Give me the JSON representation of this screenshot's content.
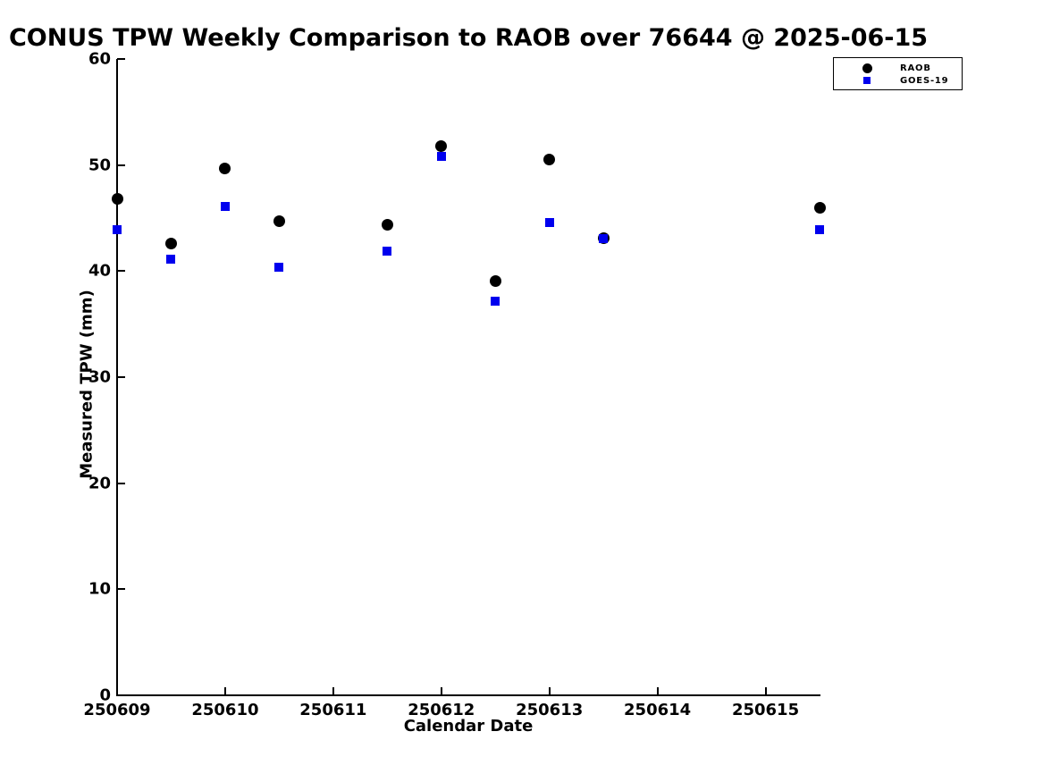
{
  "chart_data": {
    "type": "scatter",
    "title": "CONUS TPW Weekly Comparison to RAOB over 76644 @ 2025-06-15",
    "xlabel": "Calendar Date",
    "ylabel": "Measured TPW (mm)",
    "xlim": [
      250609,
      250615.5
    ],
    "ylim": [
      0,
      60
    ],
    "x_ticks": [
      250609,
      250610,
      250611,
      250612,
      250613,
      250614,
      250615
    ],
    "x_tick_labels": [
      "250609",
      "250610",
      "250611",
      "250612",
      "250613",
      "250614",
      "250615"
    ],
    "y_ticks": [
      0,
      10,
      20,
      30,
      40,
      50,
      60
    ],
    "y_tick_labels": [
      "0",
      "10",
      "20",
      "30",
      "40",
      "50",
      "60"
    ],
    "grid": false,
    "legend": {
      "position": "top-right",
      "entries": [
        "RAOB",
        "GOES-19"
      ]
    },
    "series": [
      {
        "name": "RAOB",
        "marker": "circle",
        "color": "#000000",
        "points": [
          [
            250609.0,
            46.8
          ],
          [
            250609.5,
            42.6
          ],
          [
            250610.0,
            49.7
          ],
          [
            250610.5,
            44.7
          ],
          [
            250611.5,
            44.4
          ],
          [
            250612.0,
            51.8
          ],
          [
            250612.5,
            39.1
          ],
          [
            250613.0,
            50.5
          ],
          [
            250613.5,
            43.1
          ],
          [
            250615.5,
            46.0
          ]
        ]
      },
      {
        "name": "GOES-19",
        "marker": "square",
        "color": "#0000EE",
        "points": [
          [
            250609.0,
            43.9
          ],
          [
            250609.5,
            41.1
          ],
          [
            250610.0,
            46.1
          ],
          [
            250610.5,
            40.4
          ],
          [
            250611.5,
            41.9
          ],
          [
            250612.0,
            50.8
          ],
          [
            250612.5,
            37.2
          ],
          [
            250613.0,
            44.6
          ],
          [
            250613.5,
            43.1
          ],
          [
            250615.5,
            43.9
          ]
        ]
      }
    ]
  }
}
